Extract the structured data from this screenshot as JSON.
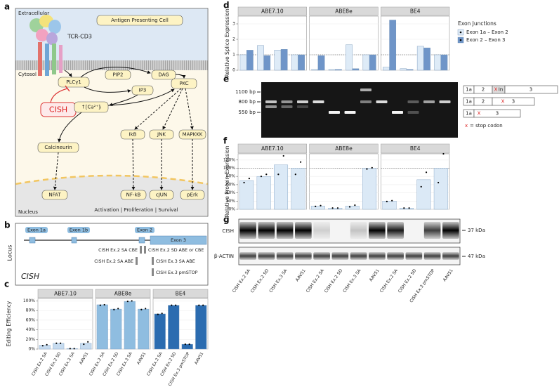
{
  "panel_letters": [
    "a",
    "b",
    "c",
    "d",
    "e",
    "f",
    "g"
  ],
  "panel_a": {
    "extracellular": "Extracellular",
    "apc": "Antigen Presenting Cell",
    "tcr": "TCR-CD3",
    "cytosol": "Cytosol",
    "plcg1": "PLCγ1",
    "pip2": "PIP2",
    "dag": "DAG",
    "ip3": "IP3",
    "pkc": "PKC",
    "cish": "CISH",
    "calcium": "↑[Ca²⁺]ᵢ",
    "ikb": "IkB",
    "jnk": "JNK",
    "mapkkk": "MAPKKK",
    "calcineurin": "Calcineurin",
    "nfat": "NFAT",
    "nfkb": "NF-kB",
    "cjun": "cJUN",
    "perk": "pErk",
    "nucleus": "Nucleus",
    "outcome": "Activation | Proliferation | Survival"
  },
  "panel_b": {
    "axis_label": "Locus",
    "gene": "CISH",
    "exons": [
      "Exon 1a",
      "Exon 1b",
      "Exon 2",
      "Exon 3"
    ],
    "guides": [
      "CISH Ex.2 SA CBE",
      "CISH Ex.2 SD ABE or CBE",
      "CISH Ex.2 SA ABE",
      "CISH Ex.3 SA ABE",
      "CISH Ex.3 pmSTOP"
    ]
  },
  "chart_data": [
    {
      "type": "bar",
      "y_label": "Editing Efficiency",
      "ylim": [
        0,
        105
      ],
      "yticks": [
        {
          "value": 0,
          "label": "0%"
        },
        {
          "value": 20,
          "label": "20%"
        },
        {
          "value": 40,
          "label": "40%"
        },
        {
          "value": 60,
          "label": "60%"
        },
        {
          "value": 80,
          "label": "80%"
        },
        {
          "value": 100,
          "label": "100%"
        }
      ],
      "grid": true,
      "facets": [
        {
          "title": "ABE7.10",
          "color": "#c6dbef",
          "categories": [
            "CISH Ex.2 SA",
            "CISH Ex.2 SD",
            "CISH Ex.3 SA",
            "AAVS1"
          ],
          "values": [
            8,
            12,
            1,
            12
          ],
          "points": [
            [
              7,
              9
            ],
            [
              12,
              12
            ],
            [
              1,
              1
            ],
            [
              10,
              15
            ]
          ]
        },
        {
          "title": "ABE8e",
          "color": "#8fbde0",
          "categories": [
            "CISH Ex.2 SA",
            "CISH Ex.2 SD",
            "CISH Ex.3 SA",
            "AAVS1"
          ],
          "values": [
            92,
            83,
            99,
            83
          ],
          "points": [
            [
              91,
              92
            ],
            [
              82,
              84
            ],
            [
              99,
              100
            ],
            [
              82,
              84
            ]
          ]
        },
        {
          "title": "BE4",
          "color": "#2b6cb0",
          "categories": [
            "CISH Ex.2 SA",
            "CISH Ex.2 SD",
            "CISH Ex.3 pmSTOP",
            "AAVS1"
          ],
          "values": [
            73,
            91,
            10,
            91
          ],
          "points": [
            [
              72,
              74
            ],
            [
              91,
              91
            ],
            [
              10,
              10
            ],
            [
              91,
              91
            ]
          ]
        }
      ]
    },
    {
      "type": "grouped_bar",
      "y_label": "Relative Splice Expression",
      "ylim": [
        0,
        3.5
      ],
      "yticks": [
        0,
        1,
        2,
        3
      ],
      "grid": true,
      "reference_line": 1,
      "legend_title": "Exon Junctions",
      "series": [
        {
          "name": "Exon 1a – Exon 2",
          "color": "#deebf7"
        },
        {
          "name": "Exon 2 – Exon 3",
          "color": "#6f95c8"
        }
      ],
      "facets": [
        {
          "title": "ABE7.10",
          "values": [
            [
              1.0,
              1.6,
              1.3,
              1.0
            ],
            [
              1.3,
              0.95,
              1.35,
              1.0
            ]
          ]
        },
        {
          "title": "ABE8e",
          "values": [
            [
              0.05,
              0.05,
              1.65,
              1.0
            ],
            [
              0.95,
              0.05,
              0.1,
              1.0
            ]
          ]
        },
        {
          "title": "BE4",
          "values": [
            [
              0.2,
              0.1,
              1.55,
              1.0
            ],
            [
              3.25,
              0.05,
              1.45,
              1.0
            ]
          ]
        }
      ]
    },
    {
      "type": "bar",
      "y_label": "Relative Protein Expression",
      "ylim": [
        0,
        135
      ],
      "yticks": [
        {
          "value": 0,
          "label": "0%"
        },
        {
          "value": 20,
          "label": "20%"
        },
        {
          "value": 40,
          "label": "40%"
        },
        {
          "value": 60,
          "label": "60%"
        },
        {
          "value": 80,
          "label": "80%"
        },
        {
          "value": 100,
          "label": "100%"
        },
        {
          "value": 120,
          "label": "120%"
        }
      ],
      "grid": true,
      "reference_line": 100,
      "color": "#dbe9f6",
      "facets": [
        {
          "title": "ABE7.10",
          "values": [
            70,
            80,
            108,
            100
          ],
          "points": [
            [
              65,
              75
            ],
            [
              80,
              85
            ],
            [
              85,
              130
            ],
            [
              85,
              115
            ]
          ]
        },
        {
          "title": "ABE8e",
          "values": [
            8,
            3,
            8,
            100
          ],
          "points": [
            [
              7,
              9
            ],
            [
              3,
              3
            ],
            [
              6,
              10
            ],
            [
              98,
              101
            ]
          ]
        },
        {
          "title": "BE4",
          "values": [
            20,
            3,
            72,
            100
          ],
          "points": [
            [
              19,
              21
            ],
            [
              3,
              3
            ],
            [
              55,
              90
            ],
            [
              65,
              135
            ]
          ]
        }
      ]
    }
  ],
  "panel_e": {
    "ladder": [
      "1100 bp",
      "800 bp",
      "550 bp"
    ],
    "schematic": [
      [
        "1a",
        "2",
        "In",
        "3"
      ],
      [
        "1a",
        "2",
        "3"
      ],
      [
        "1a",
        "3"
      ]
    ],
    "stop_mark": "X",
    "legend_mark": "x",
    "legend": "= stop codon"
  },
  "panel_g": {
    "blots": [
      "CISH",
      "β-ACTIN"
    ],
    "sizes": [
      "37 kDa",
      "47 kDa"
    ],
    "lanes": [
      "CISH Ex.2 SA",
      "CISH Ex.2 SD",
      "CISH Ex.3 SA",
      "AAVS1",
      "CISH Ex.2 SA",
      "CISH Ex.2 SD",
      "CISH Ex.3 SA",
      "AAVS1",
      "CISH Ex.2 SA",
      "CISH Ex.2 SD",
      "CISH Ex.3 pmSTOP",
      "AAVS1"
    ]
  }
}
